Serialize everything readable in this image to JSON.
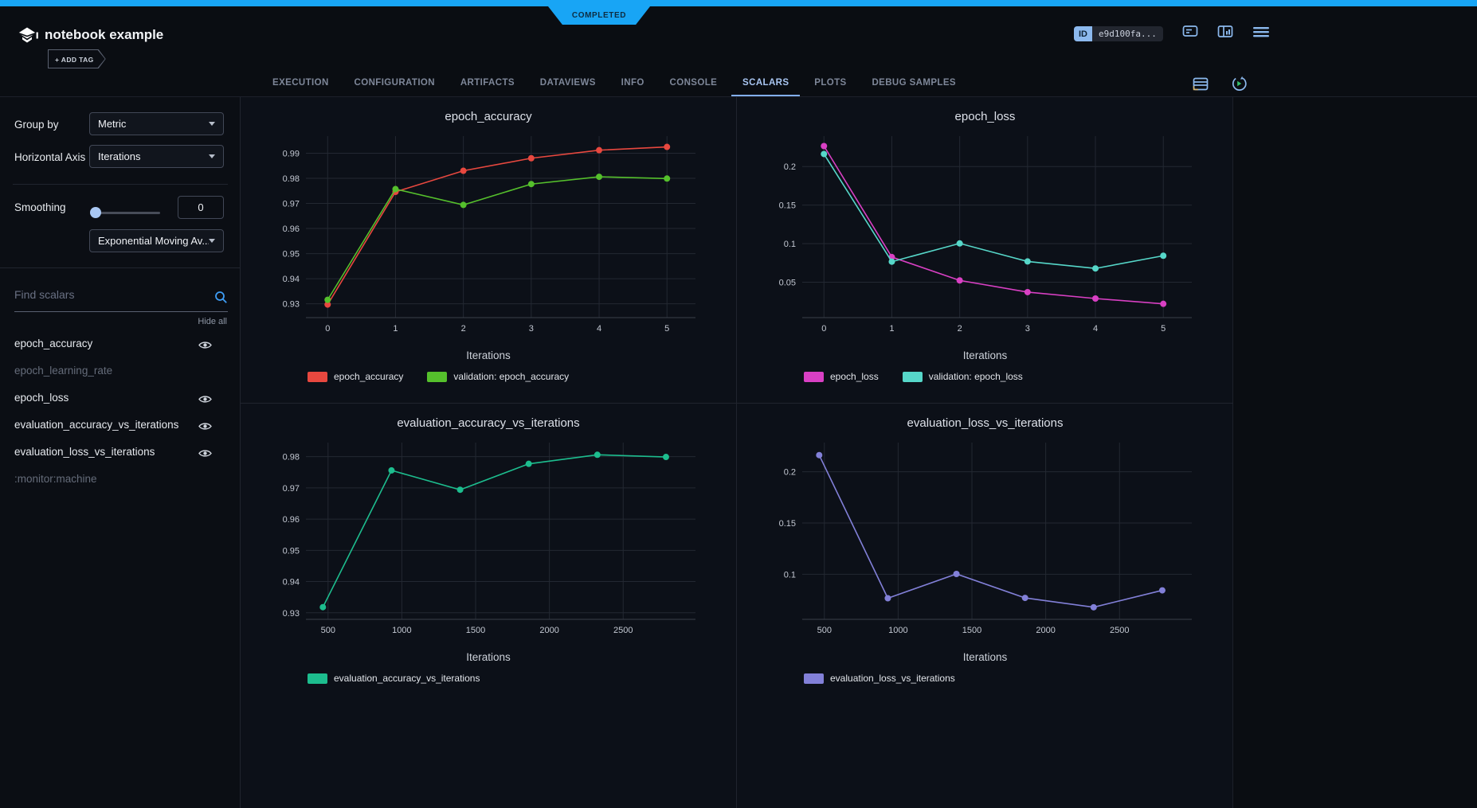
{
  "status_badge": "COMPLETED",
  "header": {
    "title": "notebook example",
    "add_tag_label": "+ ADD TAG",
    "id_badge": "ID",
    "id_value": "e9d100fa...",
    "accent_color": "#18a5f5"
  },
  "tabs": {
    "active": "SCALARS",
    "items": [
      {
        "label": "EXECUTION"
      },
      {
        "label": "CONFIGURATION"
      },
      {
        "label": "ARTIFACTS"
      },
      {
        "label": "DATAVIEWS"
      },
      {
        "label": "INFO"
      },
      {
        "label": "CONSOLE"
      },
      {
        "label": "SCALARS"
      },
      {
        "label": "PLOTS"
      },
      {
        "label": "DEBUG SAMPLES"
      }
    ]
  },
  "sidebar": {
    "group_by": {
      "label": "Group by",
      "value": "Metric"
    },
    "horizontal_axis": {
      "label": "Horizontal Axis",
      "value": "Iterations"
    },
    "smoothing": {
      "label": "Smoothing",
      "value": "0",
      "type": "Exponential Moving Av..."
    },
    "search": {
      "placeholder": "Find scalars"
    },
    "hide_all_label": "Hide all",
    "metrics": [
      {
        "name": "epoch_accuracy",
        "visible": true
      },
      {
        "name": "epoch_learning_rate",
        "visible": false
      },
      {
        "name": "epoch_loss",
        "visible": true
      },
      {
        "name": "evaluation_accuracy_vs_iterations",
        "visible": true
      },
      {
        "name": "evaluation_loss_vs_iterations",
        "visible": true
      },
      {
        "name": ":monitor:machine",
        "visible": false
      }
    ]
  },
  "chart_data": [
    {
      "type": "line",
      "title": "epoch_accuracy",
      "xlabel": "Iterations",
      "grid": true,
      "legend_position": "bottom",
      "x": [
        0,
        1,
        2,
        3,
        4,
        5
      ],
      "series": [
        {
          "name": "epoch_accuracy",
          "color": "#e8483f",
          "values": [
            0.9297,
            0.9746,
            0.983,
            0.988,
            0.9912,
            0.9925
          ]
        },
        {
          "name": "validation: epoch_accuracy",
          "color": "#55c02c",
          "values": [
            0.9316,
            0.9757,
            0.9694,
            0.9777,
            0.9806,
            0.9799
          ]
        }
      ],
      "xticks": {
        "values": [
          0,
          1,
          2,
          3,
          4,
          5
        ],
        "labels": [
          "0",
          "1",
          "2",
          "3",
          "4",
          "5"
        ]
      },
      "yticks": {
        "values": [
          0.93,
          0.94,
          0.95,
          0.96,
          0.97,
          0.98,
          0.99
        ],
        "labels": [
          "0.93",
          "0.94",
          "0.95",
          "0.96",
          "0.97",
          "0.98",
          "0.99"
        ]
      },
      "xlim": [
        -0.32,
        5.42
      ],
      "ylim": [
        0.9245,
        0.9968
      ]
    },
    {
      "type": "line",
      "title": "epoch_loss",
      "xlabel": "Iterations",
      "grid": true,
      "legend_position": "bottom",
      "x": [
        0,
        1,
        2,
        3,
        4,
        5
      ],
      "series": [
        {
          "name": "epoch_loss",
          "color": "#d940c4",
          "values": [
            0.2266,
            0.0826,
            0.0523,
            0.0371,
            0.0288,
            0.0219
          ]
        },
        {
          "name": "validation: epoch_loss",
          "color": "#56d7c9",
          "values": [
            0.2163,
            0.0766,
            0.1003,
            0.0769,
            0.0678,
            0.0843
          ]
        }
      ],
      "xticks": {
        "values": [
          0,
          1,
          2,
          3,
          4,
          5
        ],
        "labels": [
          "0",
          "1",
          "2",
          "3",
          "4",
          "5"
        ]
      },
      "yticks": {
        "values": [
          0.05,
          0.1,
          0.15,
          0.2
        ],
        "labels": [
          "0.05",
          "0.1",
          "0.15",
          "0.2"
        ]
      },
      "xlim": [
        -0.32,
        5.42
      ],
      "ylim": [
        0.004,
        0.2395
      ]
    },
    {
      "type": "line",
      "title": "evaluation_accuracy_vs_iterations",
      "xlabel": "Iterations",
      "grid": true,
      "legend_position": "bottom",
      "x": [
        465,
        930,
        1395,
        1860,
        2325,
        2790
      ],
      "series": [
        {
          "name": "evaluation_accuracy_vs_iterations",
          "color": "#1dbd8e",
          "values": [
            0.9318,
            0.9756,
            0.9694,
            0.9777,
            0.9806,
            0.9799
          ]
        }
      ],
      "xticks": {
        "values": [
          500,
          1000,
          1500,
          2000,
          2500
        ],
        "labels": [
          "500",
          "1000",
          "1500",
          "2000",
          "2500"
        ]
      },
      "yticks": {
        "values": [
          0.93,
          0.94,
          0.95,
          0.96,
          0.97,
          0.98
        ],
        "labels": [
          "0.93",
          "0.94",
          "0.95",
          "0.96",
          "0.97",
          "0.98"
        ]
      },
      "xlim": [
        350,
        2990
      ],
      "ylim": [
        0.9279,
        0.9845
      ]
    },
    {
      "type": "line",
      "title": "evaluation_loss_vs_iterations",
      "xlabel": "Iterations",
      "grid": true,
      "legend_position": "bottom",
      "x": [
        465,
        930,
        1395,
        1860,
        2325,
        2790
      ],
      "series": [
        {
          "name": "evaluation_loss_vs_iterations",
          "color": "#8280d8",
          "values": [
            0.2163,
            0.0766,
            0.1003,
            0.0769,
            0.0678,
            0.0843
          ]
        }
      ],
      "xticks": {
        "values": [
          500,
          1000,
          1500,
          2000,
          2500
        ],
        "labels": [
          "500",
          "1000",
          "1500",
          "2000",
          "2500"
        ]
      },
      "yticks": {
        "values": [
          0.1,
          0.15,
          0.2
        ],
        "labels": [
          "0.1",
          "0.15",
          "0.2"
        ]
      },
      "xlim": [
        350,
        2990
      ],
      "ylim": [
        0.056,
        0.2285
      ]
    }
  ]
}
